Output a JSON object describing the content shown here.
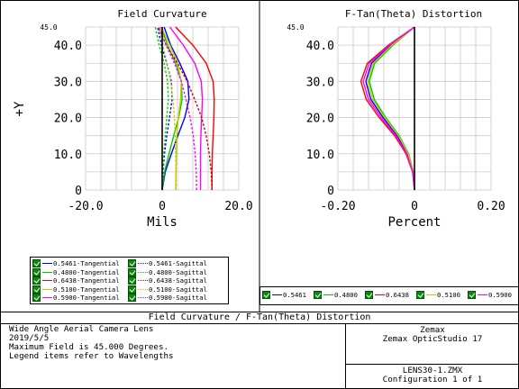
{
  "chart_data": [
    {
      "type": "line",
      "title": "Field Curvature",
      "xlabel": "Mils",
      "ylabel": "+Y",
      "x_ticks": [
        "-20.0",
        "0",
        "20.0"
      ],
      "y_ticks": [
        "0",
        "10.0",
        "20.0",
        "30.0",
        "40.0"
      ],
      "y_max_label": "45.0",
      "xlim": [
        -20,
        20
      ],
      "ylim": [
        0,
        45
      ],
      "grid": true,
      "series": [
        {
          "name": "0.5461-Tangential",
          "color": "#0000ff",
          "dash": false,
          "x": [
            0,
            0.8,
            2.4,
            4.1,
            5.9,
            7.0,
            6.7,
            4.6,
            2.2,
            0.5
          ],
          "y": [
            0,
            5,
            10,
            15,
            20,
            25,
            30,
            35,
            40,
            45
          ]
        },
        {
          "name": "0.4800-Tangential",
          "color": "#00cc00",
          "dash": false,
          "x": [
            0,
            0.6,
            1.8,
            3.0,
            4.3,
            5.2,
            5.0,
            3.5,
            1.4,
            -0.3
          ],
          "y": [
            0,
            5,
            10,
            15,
            20,
            25,
            30,
            35,
            40,
            45
          ]
        },
        {
          "name": "0.6438-Tangential",
          "color": "#ff0000",
          "dash": false,
          "x": [
            13,
            13,
            13.1,
            13.3,
            13.5,
            13.6,
            13.3,
            11.5,
            8.0,
            3.5
          ],
          "y": [
            0,
            5,
            10,
            15,
            20,
            25,
            30,
            35,
            40,
            45
          ]
        },
        {
          "name": "0.5100-Tangential",
          "color": "#c8c800",
          "dash": false,
          "x": [
            3.5,
            3.6,
            3.7,
            3.8,
            4.2,
            4.8,
            5.0,
            4.0,
            2.0,
            -0.2
          ],
          "y": [
            0,
            5,
            10,
            15,
            20,
            25,
            30,
            35,
            40,
            45
          ]
        },
        {
          "name": "0.5900-Tangential",
          "color": "#ff00ff",
          "dash": false,
          "x": [
            10,
            10,
            10,
            10.1,
            10.3,
            10.5,
            10.2,
            8.5,
            5.5,
            2.0
          ],
          "y": [
            0,
            5,
            10,
            15,
            20,
            25,
            30,
            35,
            40,
            45
          ]
        },
        {
          "name": "0.5461-Sagittal",
          "color": "#0000ff",
          "dash": true,
          "x": [
            0,
            0.2,
            0.6,
            1.2,
            1.9,
            2.6,
            2.4,
            1.2,
            -0.2,
            -1.2
          ],
          "y": [
            0,
            5,
            10,
            15,
            20,
            25,
            30,
            35,
            40,
            45
          ]
        },
        {
          "name": "0.4800-Sagittal",
          "color": "#00cc00",
          "dash": true,
          "x": [
            0,
            0.1,
            0.4,
            0.8,
            1.2,
            1.6,
            1.4,
            0.5,
            -0.8,
            -1.8
          ],
          "y": [
            0,
            5,
            10,
            15,
            20,
            25,
            30,
            35,
            40,
            45
          ]
        },
        {
          "name": "0.6438-Sagittal",
          "color": "#cc0000",
          "dash": true,
          "x": [
            13,
            12.8,
            12.3,
            11.5,
            10.3,
            8.5,
            6.5,
            4.0,
            1.0,
            -1.0
          ],
          "y": [
            0,
            5,
            10,
            15,
            20,
            25,
            30,
            35,
            40,
            45
          ]
        },
        {
          "name": "0.5100-Sagittal",
          "color": "#c8c800",
          "dash": true,
          "x": [
            3.6,
            3.6,
            3.5,
            3.4,
            3.2,
            2.8,
            2.2,
            1.3,
            0.2,
            -0.8
          ],
          "y": [
            0,
            5,
            10,
            15,
            20,
            25,
            30,
            35,
            40,
            45
          ]
        },
        {
          "name": "0.5900-Sagittal",
          "color": "#ff00ff",
          "dash": true,
          "x": [
            9,
            8.9,
            8.6,
            8.1,
            7.3,
            6.2,
            5.0,
            3.2,
            1.0,
            -0.8
          ],
          "y": [
            0,
            5,
            10,
            15,
            20,
            25,
            30,
            35,
            40,
            45
          ]
        }
      ]
    },
    {
      "type": "line",
      "title": "F-Tan(Theta) Distortion",
      "xlabel": "Percent",
      "ylabel": "",
      "x_ticks": [
        "-0.20",
        "0",
        "0.20"
      ],
      "y_ticks": [
        "0",
        "10.0",
        "20.0",
        "30.0",
        "40.0"
      ],
      "y_max_label": "45.0",
      "xlim": [
        -0.2,
        0.2
      ],
      "ylim": [
        0,
        45
      ],
      "grid": true,
      "series": [
        {
          "name": "0.5461",
          "color": "#0000ff",
          "dash": false,
          "x": [
            0,
            -0.004,
            -0.018,
            -0.045,
            -0.082,
            -0.114,
            -0.127,
            -0.112,
            -0.062,
            0
          ],
          "y": [
            0,
            5,
            10,
            15,
            20,
            25,
            30,
            35,
            40,
            45
          ]
        },
        {
          "name": "0.4800",
          "color": "#00cc00",
          "dash": false,
          "x": [
            0,
            -0.003,
            -0.015,
            -0.04,
            -0.075,
            -0.105,
            -0.118,
            -0.104,
            -0.056,
            0
          ],
          "y": [
            0,
            5,
            10,
            15,
            20,
            25,
            30,
            35,
            40,
            45
          ]
        },
        {
          "name": "0.6438",
          "color": "#ff0000",
          "dash": false,
          "x": [
            0,
            -0.005,
            -0.022,
            -0.052,
            -0.092,
            -0.126,
            -0.14,
            -0.123,
            -0.068,
            0
          ],
          "y": [
            0,
            5,
            10,
            15,
            20,
            25,
            30,
            35,
            40,
            45
          ]
        },
        {
          "name": "0.5100",
          "color": "#c8c800",
          "dash": false,
          "x": [
            0,
            -0.0035,
            -0.016,
            -0.042,
            -0.078,
            -0.109,
            -0.122,
            -0.108,
            -0.059,
            0
          ],
          "y": [
            0,
            5,
            10,
            15,
            20,
            25,
            30,
            35,
            40,
            45
          ]
        },
        {
          "name": "0.5900",
          "color": "#ff00ff",
          "dash": false,
          "x": [
            0,
            -0.0045,
            -0.02,
            -0.049,
            -0.087,
            -0.12,
            -0.134,
            -0.118,
            -0.065,
            0
          ],
          "y": [
            0,
            5,
            10,
            15,
            20,
            25,
            30,
            35,
            40,
            45
          ]
        }
      ]
    }
  ],
  "footer": {
    "title": "Field Curvature / F-Tan(Theta) Distortion",
    "lens_name": "Wide Angle Aerial Camera Lens",
    "date": "2019/5/5",
    "max_field": "Maximum Field is 45.000 Degrees.",
    "legend_note": "Legend items refer to Wavelengths",
    "company": "Zemax",
    "software": "Zemax OpticStudio 17",
    "file": "LENS30-1.ZMX",
    "configuration": "Configuration 1 of 1"
  }
}
